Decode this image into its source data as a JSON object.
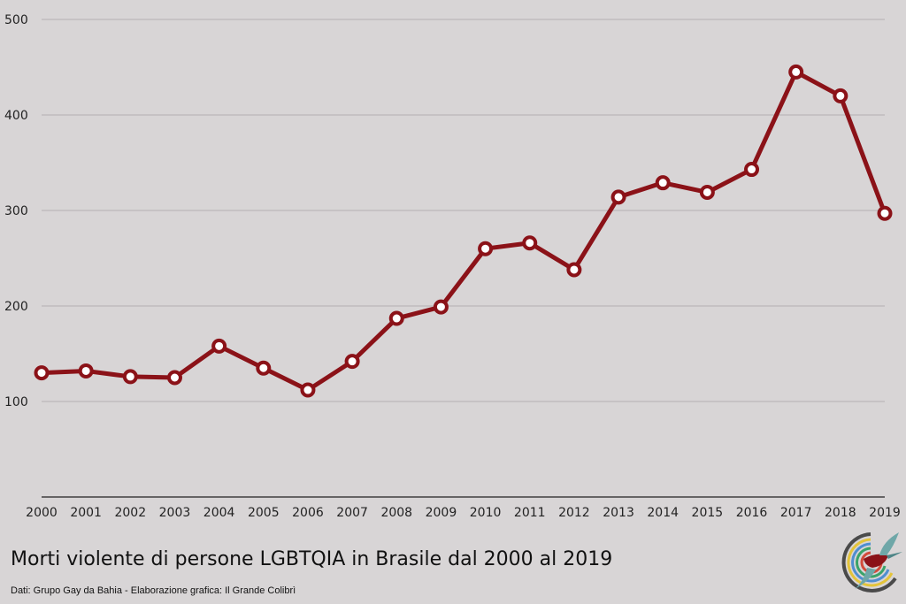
{
  "chart_data": {
    "type": "line",
    "title": "Morti violente di persone LGBTQIA in Brasile dal 2000 al 2019",
    "xlabel": "",
    "ylabel": "",
    "categories": [
      "2000",
      "2001",
      "2002",
      "2003",
      "2004",
      "2005",
      "2006",
      "2007",
      "2008",
      "2009",
      "2010",
      "2011",
      "2012",
      "2013",
      "2014",
      "2015",
      "2016",
      "2017",
      "2018",
      "2019"
    ],
    "series": [
      {
        "values": [
          130,
          132,
          126,
          125,
          158,
          135,
          112,
          142,
          187,
          199,
          260,
          266,
          238,
          314,
          329,
          319,
          343,
          445,
          420,
          297
        ]
      }
    ],
    "ylim": [
      0,
      500
    ],
    "yticks": [
      100,
      200,
      300,
      400,
      500
    ],
    "grid": true,
    "legend": "none",
    "line_color": "#8b1218"
  },
  "footer": {
    "credit": "Dati: Grupo Gay da Bahia - Elaborazione grafica: Il Grande Colibrì"
  },
  "logo": {
    "icon": "hummingbird-logo-icon"
  }
}
